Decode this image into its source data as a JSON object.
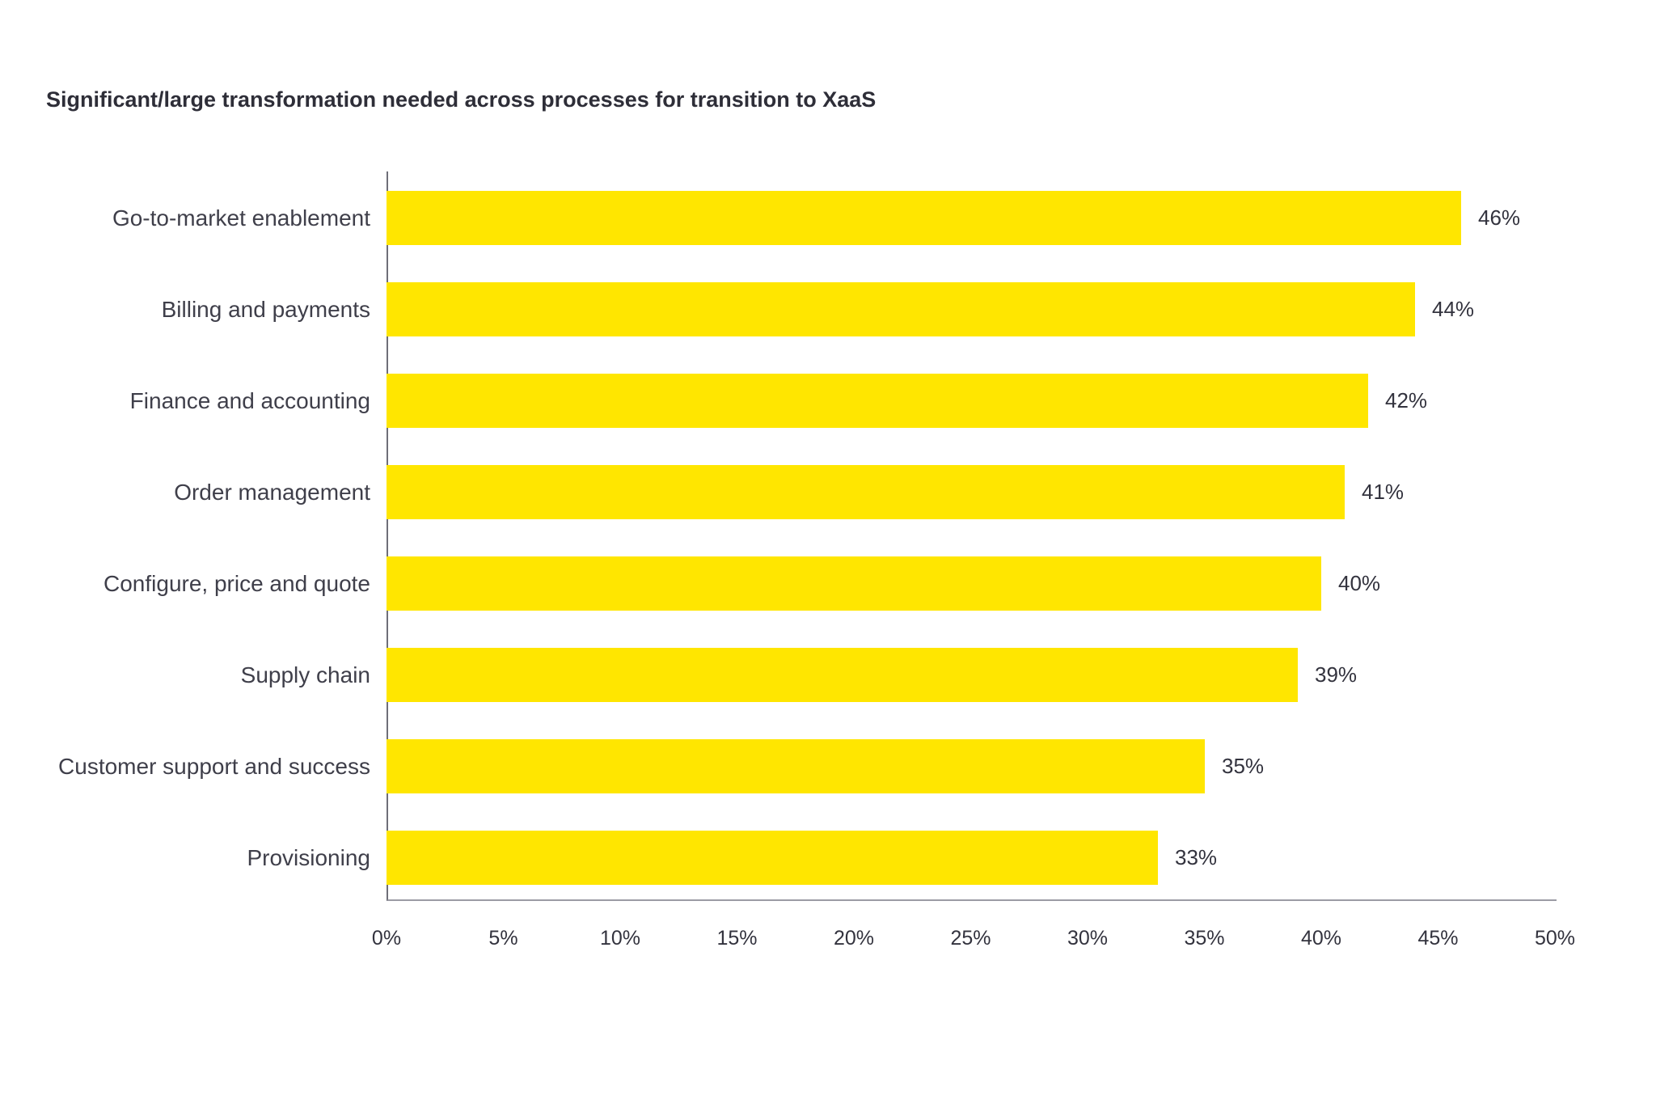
{
  "title": "Significant/large transformation needed across processes for transition to XaaS",
  "chart_data": {
    "type": "bar",
    "orientation": "horizontal",
    "title": "Significant/large transformation needed across processes for transition to XaaS",
    "categories": [
      "Go-to-market enablement",
      "Billing and payments",
      "Finance and accounting",
      "Order management",
      "Configure, price and quote",
      "Supply chain",
      "Customer support and success",
      "Provisioning"
    ],
    "values": [
      46,
      44,
      42,
      41,
      40,
      39,
      35,
      33
    ],
    "value_labels": [
      "46%",
      "44%",
      "42%",
      "41%",
      "40%",
      "39%",
      "35%",
      "33%"
    ],
    "xlabel": "",
    "ylabel": "",
    "xlim": [
      0,
      50
    ],
    "x_ticks": [
      "0%",
      "5%",
      "10%",
      "15%",
      "20%",
      "25%",
      "30%",
      "35%",
      "40%",
      "45%",
      "50%"
    ],
    "grid": false,
    "legend": false,
    "colors": {
      "bar": "#FFE600",
      "title_text": "#2E2E38",
      "category_text": "#3F3F4A",
      "value_text": "#33333E",
      "tick_text": "#33333E",
      "y_axis_line": "#6E6E78",
      "x_axis_line": "#9C9CA4",
      "background": "#FFFFFF"
    }
  }
}
